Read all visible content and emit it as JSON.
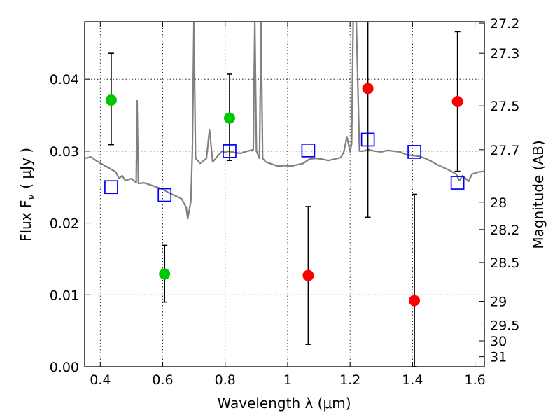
{
  "chart_data": {
    "type": "scatter",
    "xlabel": "Wavelength  λ (μm)",
    "ylabel_left": "Flux  F",
    "ylabel_left_sub": "ν",
    "ylabel_left_unit": "( μJy )",
    "ylabel_right": "Magnitude (AB)",
    "xlim": [
      0.35,
      1.63
    ],
    "ylim": [
      0,
      0.048
    ],
    "grid": true,
    "x_ticks": [
      {
        "value": 0.4,
        "label": "0.4"
      },
      {
        "value": 0.6,
        "label": "0.6"
      },
      {
        "value": 0.8,
        "label": "0.8"
      },
      {
        "value": 1.0,
        "label": "1"
      },
      {
        "value": 1.2,
        "label": "1.2"
      },
      {
        "value": 1.4,
        "label": "1.4"
      },
      {
        "value": 1.6,
        "label": "1.6"
      }
    ],
    "y_ticks": [
      {
        "value": 0.0,
        "label": "0.00"
      },
      {
        "value": 0.01,
        "label": "0.01"
      },
      {
        "value": 0.02,
        "label": "0.02"
      },
      {
        "value": 0.03,
        "label": "0.03"
      },
      {
        "value": 0.04,
        "label": "0.04"
      }
    ],
    "right_ticks": [
      {
        "label": "27.2",
        "flux": 0.0478
      },
      {
        "label": "27.3",
        "flux": 0.0436
      },
      {
        "label": "27.5",
        "flux": 0.0363
      },
      {
        "label": "27.7",
        "flux": 0.0302
      },
      {
        "label": "28",
        "flux": 0.0229
      },
      {
        "label": "28.2",
        "flux": 0.0191
      },
      {
        "label": "28.5",
        "flux": 0.0145
      },
      {
        "label": "29",
        "flux": 0.0091
      },
      {
        "label": "29.5",
        "flux": 0.0058
      },
      {
        "label": "30",
        "flux": 0.0036
      },
      {
        "label": "31",
        "flux": 0.0014
      }
    ],
    "series": [
      {
        "color": "#00c800",
        "marker": "circle",
        "points": [
          {
            "x": 0.435,
            "y": 0.0371,
            "err_low": 0.0309,
            "err_high": 0.0436
          },
          {
            "x": 0.606,
            "y": 0.0129,
            "err_low": 0.009,
            "err_high": 0.0169
          },
          {
            "x": 0.814,
            "y": 0.0346,
            "err_low": 0.0287,
            "err_high": 0.0407
          }
        ]
      },
      {
        "color": "#ff0000",
        "marker": "circle",
        "points": [
          {
            "x": 1.066,
            "y": 0.0127,
            "err_low": 0.0031,
            "err_high": 0.0223
          },
          {
            "x": 1.257,
            "y": 0.0387,
            "err_low": 0.0208,
            "err_high": 0.0482
          },
          {
            "x": 1.406,
            "y": 0.0092,
            "err_low": 0.0,
            "err_high": 0.024
          },
          {
            "x": 1.544,
            "y": 0.0369,
            "err_low": 0.0272,
            "err_high": 0.0466
          }
        ]
      },
      {
        "color": "#0000ff",
        "marker": "square-open",
        "points": [
          {
            "x": 0.435,
            "y": 0.025
          },
          {
            "x": 0.606,
            "y": 0.0239
          },
          {
            "x": 0.814,
            "y": 0.03
          },
          {
            "x": 1.066,
            "y": 0.0301
          },
          {
            "x": 1.257,
            "y": 0.0316
          },
          {
            "x": 1.406,
            "y": 0.0299
          },
          {
            "x": 1.544,
            "y": 0.0256
          }
        ]
      },
      {
        "color": "#808080",
        "type": "line",
        "points": [
          [
            0.35,
            0.029
          ],
          [
            0.37,
            0.0292
          ],
          [
            0.39,
            0.0286
          ],
          [
            0.41,
            0.0281
          ],
          [
            0.43,
            0.0276
          ],
          [
            0.45,
            0.0271
          ],
          [
            0.46,
            0.0262
          ],
          [
            0.47,
            0.0266
          ],
          [
            0.48,
            0.0259
          ],
          [
            0.5,
            0.0262
          ],
          [
            0.515,
            0.0256
          ],
          [
            0.518,
            0.037
          ],
          [
            0.522,
            0.0255
          ],
          [
            0.54,
            0.0256
          ],
          [
            0.56,
            0.0253
          ],
          [
            0.58,
            0.025
          ],
          [
            0.6,
            0.0247
          ],
          [
            0.62,
            0.0242
          ],
          [
            0.64,
            0.0238
          ],
          [
            0.66,
            0.0234
          ],
          [
            0.675,
            0.0222
          ],
          [
            0.68,
            0.0206
          ],
          [
            0.69,
            0.023
          ],
          [
            0.695,
            0.03
          ],
          [
            0.7,
            0.048
          ],
          [
            0.705,
            0.029
          ],
          [
            0.72,
            0.0283
          ],
          [
            0.74,
            0.029
          ],
          [
            0.75,
            0.033
          ],
          [
            0.76,
            0.0285
          ],
          [
            0.78,
            0.0295
          ],
          [
            0.79,
            0.03
          ],
          [
            0.8,
            0.0298
          ],
          [
            0.81,
            0.03
          ],
          [
            0.83,
            0.0298
          ],
          [
            0.85,
            0.0297
          ],
          [
            0.87,
            0.03
          ],
          [
            0.89,
            0.0302
          ],
          [
            0.895,
            0.048
          ],
          [
            0.9,
            0.03
          ],
          [
            0.91,
            0.029
          ],
          [
            0.915,
            0.048
          ],
          [
            0.92,
            0.029
          ],
          [
            0.93,
            0.0285
          ],
          [
            0.95,
            0.0282
          ],
          [
            0.97,
            0.0279
          ],
          [
            0.99,
            0.028
          ],
          [
            1.01,
            0.0279
          ],
          [
            1.03,
            0.0281
          ],
          [
            1.05,
            0.0283
          ],
          [
            1.07,
            0.0289
          ],
          [
            1.09,
            0.029
          ],
          [
            1.11,
            0.0289
          ],
          [
            1.13,
            0.0287
          ],
          [
            1.15,
            0.0289
          ],
          [
            1.17,
            0.0291
          ],
          [
            1.18,
            0.0299
          ],
          [
            1.19,
            0.032
          ],
          [
            1.2,
            0.0299
          ],
          [
            1.205,
            0.031
          ],
          [
            1.21,
            0.048
          ],
          [
            1.22,
            0.048
          ],
          [
            1.23,
            0.03
          ],
          [
            1.24,
            0.03
          ],
          [
            1.26,
            0.0302
          ],
          [
            1.28,
            0.03
          ],
          [
            1.3,
            0.0299
          ],
          [
            1.32,
            0.0301
          ],
          [
            1.34,
            0.03
          ],
          [
            1.36,
            0.0299
          ],
          [
            1.38,
            0.0295
          ],
          [
            1.4,
            0.0294
          ],
          [
            1.42,
            0.0293
          ],
          [
            1.44,
            0.029
          ],
          [
            1.46,
            0.0286
          ],
          [
            1.48,
            0.0281
          ],
          [
            1.5,
            0.0277
          ],
          [
            1.52,
            0.0273
          ],
          [
            1.54,
            0.0268
          ],
          [
            1.55,
            0.0259
          ],
          [
            1.56,
            0.0266
          ],
          [
            1.57,
            0.0262
          ],
          [
            1.58,
            0.0258
          ],
          [
            1.59,
            0.0268
          ],
          [
            1.61,
            0.0271
          ],
          [
            1.63,
            0.0272
          ]
        ]
      }
    ]
  }
}
